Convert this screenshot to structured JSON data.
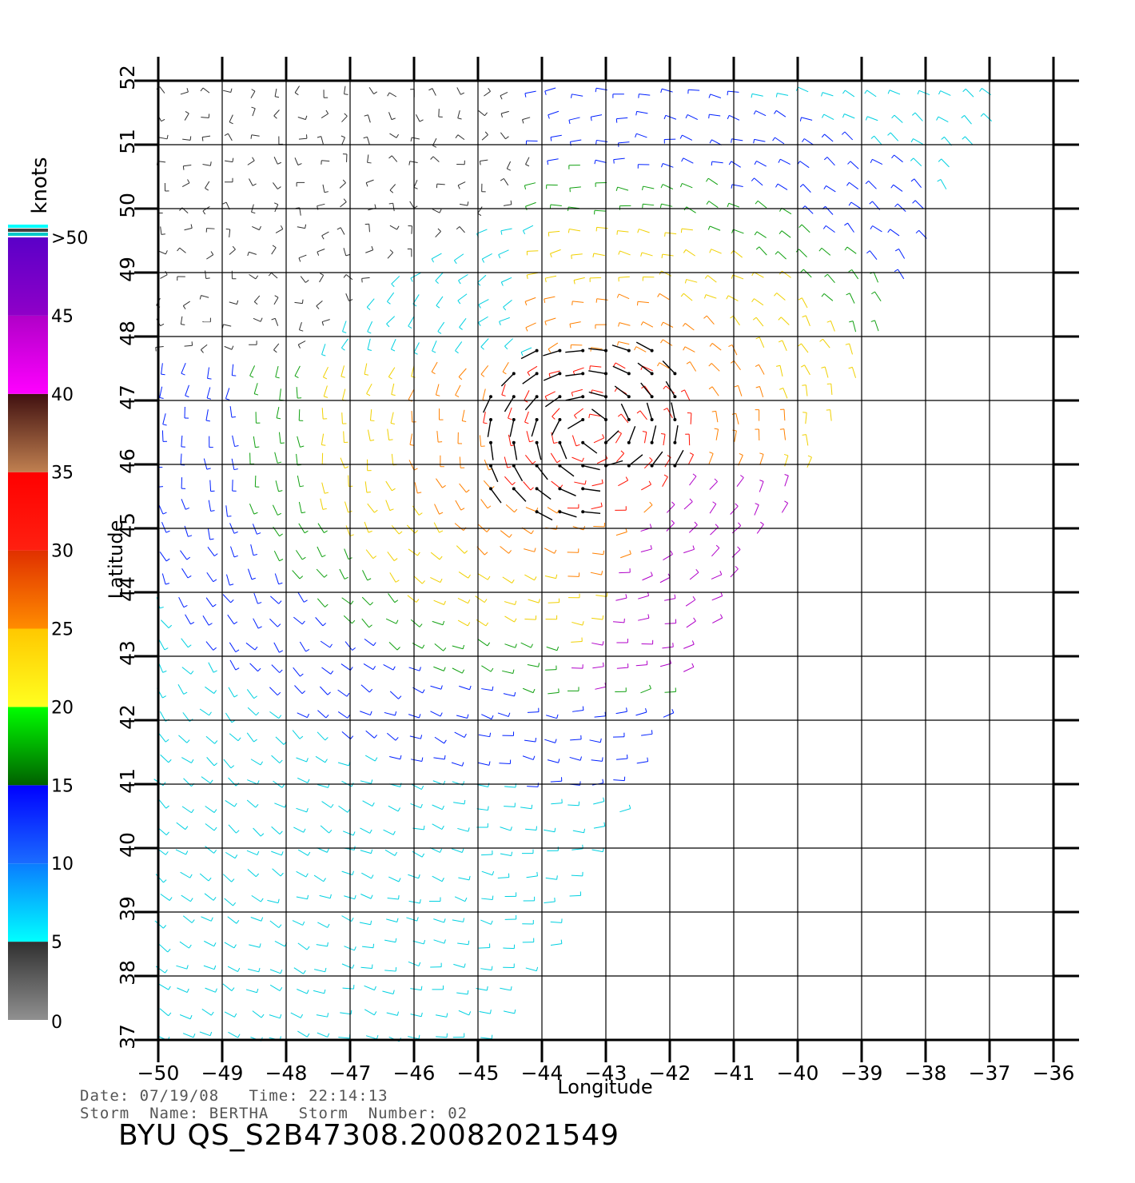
{
  "chart_data": {
    "type": "wind-vector-map",
    "xlabel": "Longitude",
    "ylabel": "Latitude",
    "xlim": [
      -50,
      -36
    ],
    "ylim": [
      37,
      52
    ],
    "x_ticks": [
      -50,
      -49,
      -48,
      -47,
      -46,
      -45,
      -44,
      -43,
      -42,
      -41,
      -40,
      -39,
      -38,
      -37,
      -36
    ],
    "y_ticks": [
      37,
      38,
      39,
      40,
      41,
      42,
      43,
      44,
      45,
      46,
      47,
      48,
      49,
      50,
      51,
      52
    ],
    "grid": true,
    "swath": {
      "description_points": [
        [
          -50,
          37
        ],
        [
          -50,
          52
        ],
        [
          -36.7,
          52
        ],
        [
          -44.6,
          37
        ]
      ]
    },
    "storm_center": [
      -43.2,
      46.5
    ],
    "colorbar": {
      "title": "knots",
      "ticks": [
        "0",
        "5",
        "10",
        "15",
        "20",
        "25",
        "30",
        "35",
        "40",
        "45",
        ">50"
      ],
      "bands": [
        {
          "range": [
            0,
            5
          ],
          "color_top": "#303030",
          "color_bottom": "#909090"
        },
        {
          "range": [
            5,
            10
          ],
          "color_top": "#0a7cff",
          "color_bottom": "#00ffff"
        },
        {
          "range": [
            10,
            15
          ],
          "color_top": "#0000ff",
          "color_bottom": "#1a6cff"
        },
        {
          "range": [
            15,
            20
          ],
          "color_top": "#00ff00",
          "color_bottom": "#006000"
        },
        {
          "range": [
            20,
            25
          ],
          "color_top": "#ffc800",
          "color_bottom": "#ffff20"
        },
        {
          "range": [
            25,
            30
          ],
          "color_top": "#e03000",
          "color_bottom": "#ff8c00"
        },
        {
          "range": [
            30,
            35
          ],
          "color_top": "#ff0000",
          "color_bottom": "#ff2010"
        },
        {
          "range": [
            35,
            40
          ],
          "color_top": "#401010",
          "color_bottom": "#c08050"
        },
        {
          "range": [
            40,
            45
          ],
          "color_top": "#b000c8",
          "color_bottom": "#ff00ff"
        },
        {
          "range": [
            45,
            50
          ],
          "color_top": "#5a00c8",
          "color_bottom": "#9000c8"
        }
      ],
      "legend_cap_colors": [
        "#00ffff",
        "#404040",
        "#00c8c8"
      ]
    },
    "speed_colors": {
      "calm": "#303030",
      "light": "#00d0e0",
      "moderate": "#0020ff",
      "fresh": "#10a010",
      "strong": "#f0d000",
      "gale": "#ff8000",
      "severe": "#ff1000",
      "storm": "#b000c8",
      "rain_flag": "#000000"
    }
  },
  "footer": {
    "date_line": "Date: 07/19/08   Time: 22:14:13",
    "storm_line": "Storm  Name: BERTHA   Storm  Number: 02",
    "product_id": "BYU  QS_S2B47308.20082021549"
  }
}
